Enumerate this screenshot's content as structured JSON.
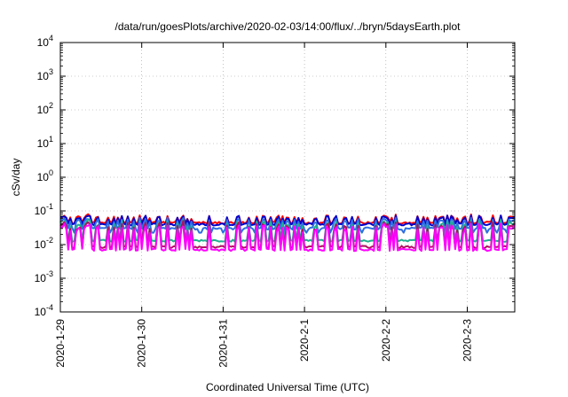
{
  "chart_data": {
    "type": "line",
    "title": "/data/run/goesPlots/archive/2020-02-03/14:00/flux/../bryn/5daysEarth.plot",
    "xlabel": "Coordinated Universal Time (UTC)",
    "ylabel": "cSv/day",
    "yscale": "log",
    "ylim": [
      0.0001,
      10000
    ],
    "xlim": [
      "2020-01-29 00:00",
      "2020-02-03 14:00"
    ],
    "grid": true,
    "legend": "none",
    "y_ticks": [
      {
        "base": "10",
        "exp": "4"
      },
      {
        "base": "10",
        "exp": "3"
      },
      {
        "base": "10",
        "exp": "2"
      },
      {
        "base": "10",
        "exp": "1"
      },
      {
        "base": "10",
        "exp": "0"
      },
      {
        "base": "10",
        "exp": "-1"
      },
      {
        "base": "10",
        "exp": "-2"
      },
      {
        "base": "10",
        "exp": "-3"
      },
      {
        "base": "10",
        "exp": "-4"
      }
    ],
    "x_ticks": [
      "2020-1-29",
      "2020-1-30",
      "2020-1-31",
      "2020-2-1",
      "2020-2-2",
      "2020-2-3"
    ],
    "series": [
      {
        "color": "#ff0000",
        "baseline": 0.045,
        "spike": 0.075,
        "pattern": "upper"
      },
      {
        "color": "#0000cc",
        "baseline": 0.04,
        "spike": 0.07,
        "pattern": "upper"
      },
      {
        "color": "#2f6fe0",
        "baseline": 0.03,
        "spike": 0.06,
        "pattern": "mid"
      },
      {
        "color": "#20b090",
        "baseline": 0.013,
        "spike": 0.05,
        "pattern": "lower"
      },
      {
        "color": "#b01060",
        "baseline": 0.0085,
        "spike": 0.045,
        "pattern": "lower"
      },
      {
        "color": "#ff00ff",
        "baseline": 0.007,
        "spike": 0.04,
        "pattern": "lower"
      }
    ]
  }
}
